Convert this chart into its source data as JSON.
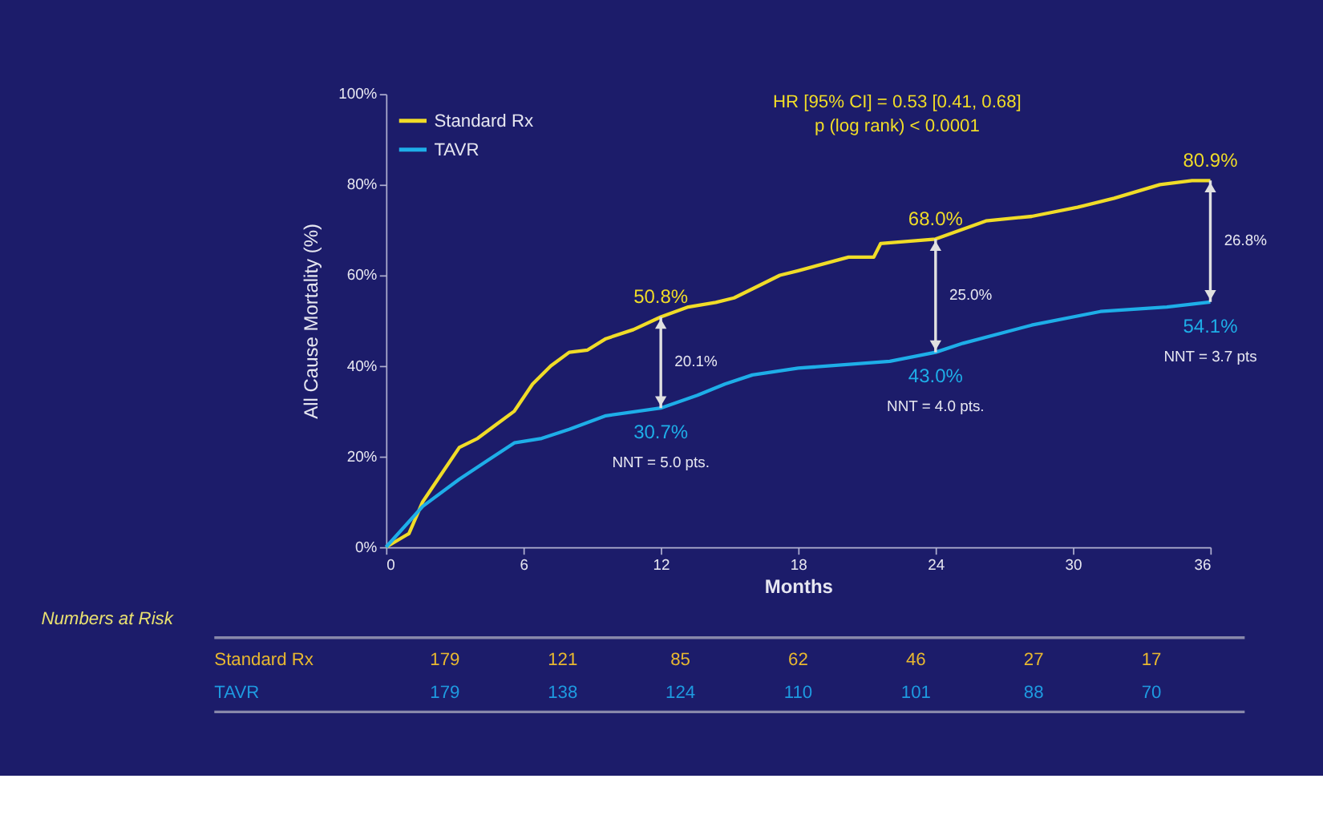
{
  "chart_data": [
    {
      "type": "line",
      "ylabel": "All Cause Mortality (%)",
      "xlabel": "Months",
      "xlim": [
        0,
        36
      ],
      "xticks": [
        0,
        6,
        12,
        18,
        24,
        30,
        36
      ],
      "ylim": [
        0,
        100
      ],
      "yticks": [
        {
          "value": 0,
          "label": "0%"
        },
        {
          "value": 20,
          "label": "20%"
        },
        {
          "value": 40,
          "label": "40%"
        },
        {
          "value": 60,
          "label": "60%"
        },
        {
          "value": 80,
          "label": "80%"
        },
        {
          "value": 100,
          "label": "100%"
        }
      ],
      "grid": false,
      "legend": "top left",
      "marker": "none",
      "line_style": "solid",
      "series": [
        {
          "name": "Standard Rx",
          "color": "#f0dc28",
          "x": [
            0,
            1,
            1.6,
            2.4,
            3.2,
            4,
            4.8,
            5.6,
            6.4,
            7.2,
            8,
            8.8,
            9.6,
            10.8,
            12,
            13.2,
            14.4,
            15.2,
            16,
            17.2,
            18,
            20.2,
            21.3,
            21.6,
            24,
            26.2,
            28.2,
            30.2,
            31.8,
            33.8,
            35.2,
            36
          ],
          "values": [
            0,
            3,
            10,
            16,
            22,
            24,
            27,
            30,
            36,
            40,
            43,
            43.5,
            46,
            48,
            50.8,
            53,
            54,
            55,
            57,
            60,
            61,
            64,
            64,
            67,
            68.0,
            72,
            73,
            75,
            77,
            80,
            80.9,
            80.9
          ],
          "value_labels": [
            null,
            null,
            null,
            null,
            null,
            null,
            null,
            null,
            null,
            null,
            null,
            null,
            null,
            null,
            "50.8%",
            null,
            null,
            null,
            null,
            null,
            null,
            null,
            null,
            null,
            "68.0%",
            null,
            null,
            null,
            null,
            null,
            null,
            "80.9%"
          ]
        },
        {
          "name": "TAVR",
          "color": "#1eaee8",
          "x": [
            0,
            1.6,
            3.2,
            4.4,
            5.6,
            6.8,
            8,
            9.6,
            12,
            13.6,
            14.8,
            16,
            18,
            22,
            24,
            25.2,
            28.2,
            31.2,
            34.1,
            36
          ],
          "values": [
            0,
            9,
            15,
            19,
            23,
            24,
            26,
            29,
            30.7,
            33.5,
            36,
            38,
            39.5,
            41,
            43.0,
            45,
            49,
            52,
            53,
            54.1
          ],
          "value_labels": [
            null,
            null,
            null,
            null,
            null,
            null,
            null,
            null,
            "30.7%",
            null,
            null,
            null,
            null,
            null,
            "43.0%",
            null,
            null,
            null,
            null,
            "54.1%"
          ]
        }
      ],
      "annotations": [
        "HR [95% CI] = 0.53 [0.41, 0.68]",
        "p (log rank) < 0.0001",
        "20.1%",
        "25.0%",
        "26.8%",
        "NNT = 5.0 pts.",
        "NNT = 4.0 pts.",
        "NNT = 3.7 pts"
      ]
    },
    {
      "type": "other",
      "title": "Numbers at Risk",
      "annotations": [
        "Standard Rx",
        "179",
        "121",
        "85",
        "62",
        "46",
        "27",
        "17",
        "TAVR",
        "179",
        "138",
        "124",
        "110",
        "101",
        "88",
        "70"
      ],
      "colors": [
        "#e8b830",
        "#e8b830",
        "#e8b830",
        "#e8b830",
        "#e8b830",
        "#e8b830",
        "#e8b830",
        "#e8b830",
        "#1e9ae0",
        "#1e9ae0",
        "#1e9ae0",
        "#1e9ae0",
        "#1e9ae0",
        "#1e9ae0",
        "#1e9ae0",
        "#1e9ae0"
      ]
    }
  ]
}
